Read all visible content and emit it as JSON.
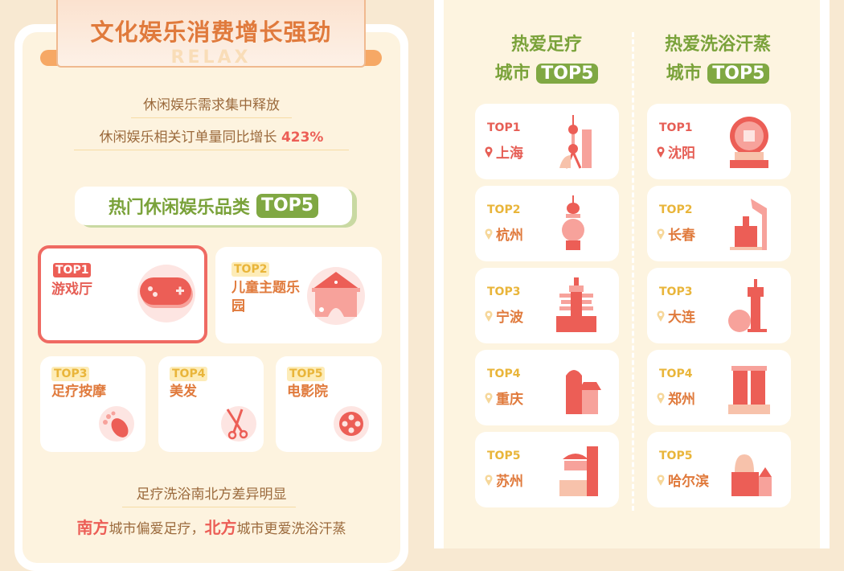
{
  "header": {
    "title": "文化娱乐消费增长强劲",
    "watermark": "RELAX"
  },
  "intro": {
    "line1": "休闲娱乐需求集中释放",
    "line2_prefix": "休闲娱乐相关订单量同比增长 ",
    "line2_value": "423%"
  },
  "categories": {
    "title": "热门休闲娱乐品类",
    "badge": "TOP5",
    "items": [
      {
        "rank": "TOP1",
        "name": "游戏厅",
        "icon": "gamepad-icon"
      },
      {
        "rank": "TOP2",
        "name": "儿童主题乐园",
        "icon": "tent-icon"
      },
      {
        "rank": "TOP3",
        "name": "足疗按摩",
        "icon": "foot-icon"
      },
      {
        "rank": "TOP4",
        "name": "美发",
        "icon": "scissors-icon"
      },
      {
        "rank": "TOP5",
        "name": "电影院",
        "icon": "film-reel-icon"
      }
    ]
  },
  "footer": {
    "line1": "足疗洗浴南北方差异明显",
    "south": "南方",
    "mid1": "城市偏爱足疗，",
    "north": "北方",
    "mid2": "城市更爱洗浴汗蒸"
  },
  "foot_massage": {
    "title": "热爱足疗",
    "title2": "城市",
    "badge": "TOP5",
    "items": [
      {
        "rank": "TOP1",
        "city": "上海"
      },
      {
        "rank": "TOP2",
        "city": "杭州"
      },
      {
        "rank": "TOP3",
        "city": "宁波"
      },
      {
        "rank": "TOP4",
        "city": "重庆"
      },
      {
        "rank": "TOP5",
        "city": "苏州"
      }
    ]
  },
  "bath_sauna": {
    "title": "热爱洗浴汗蒸",
    "title2": "城市",
    "badge": "TOP5",
    "items": [
      {
        "rank": "TOP1",
        "city": "沈阳"
      },
      {
        "rank": "TOP2",
        "city": "长春"
      },
      {
        "rank": "TOP3",
        "city": "大连"
      },
      {
        "rank": "TOP4",
        "city": "郑州"
      },
      {
        "rank": "TOP5",
        "city": "哈尔滨"
      }
    ]
  },
  "colors": {
    "accent_red": "#ec5e56",
    "orange": "#e07a3c",
    "green": "#80a843",
    "gold": "#e9b53a",
    "bg": "#fdf3df"
  }
}
